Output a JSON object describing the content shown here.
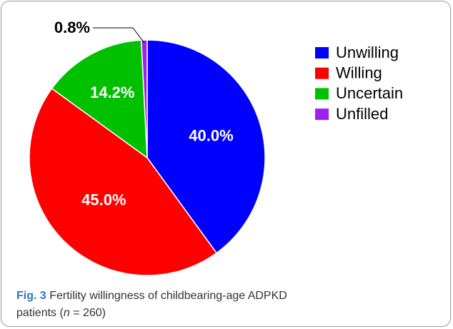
{
  "chart_data": {
    "type": "pie",
    "categories": [
      "Unwilling",
      "Willing",
      "Uncertain",
      "Unfilled"
    ],
    "values": [
      40.0,
      45.0,
      14.2,
      0.8
    ],
    "value_labels": [
      "40.0%",
      "45.0%",
      "14.2%",
      "0.8%"
    ],
    "colors": [
      "#0000ff",
      "#ff0000",
      "#00c000",
      "#a020f0"
    ],
    "legend": "right"
  },
  "caption": {
    "label": "Fig. 3",
    "text": [
      "Fertility willingness of childbearing-age ADPKD",
      "patients (",
      "n",
      " = 260)"
    ]
  }
}
